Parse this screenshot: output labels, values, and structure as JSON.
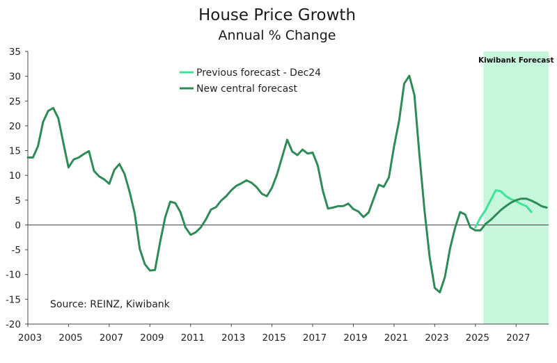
{
  "chart_data": {
    "type": "line",
    "title": "House Price Growth",
    "subtitle": "Annual % Change",
    "xlabel": "",
    "ylabel": "",
    "xlim": [
      2003,
      2028.6
    ],
    "ylim": [
      -20,
      35
    ],
    "y_ticks": [
      "35",
      "30",
      "25",
      "20",
      "15",
      "10",
      "5",
      "0",
      "-5",
      "-10",
      "-15",
      "-20"
    ],
    "x_ticks": [
      "2003",
      "2005",
      "2007",
      "2009",
      "2011",
      "2013",
      "2015",
      "2017",
      "2019",
      "2021",
      "2023",
      "2025",
      "2027"
    ],
    "grid": false,
    "legend_position": "top-center",
    "source": "Source: REINZ, Kiwibank",
    "forecast_band": {
      "label": "Kiwibank Forecast",
      "start": 2025.4,
      "end": 2028.6,
      "color": "#c6f6dc"
    },
    "series": [
      {
        "name": "Previous forecast - Dec24",
        "color": "#3ee39a",
        "points": [
          [
            2025.0,
            -0.5
          ],
          [
            2025.25,
            1.5
          ],
          [
            2025.5,
            3.0
          ],
          [
            2025.75,
            5.0
          ],
          [
            2026.0,
            7.0
          ],
          [
            2026.25,
            6.8
          ],
          [
            2026.5,
            5.8
          ],
          [
            2026.75,
            5.2
          ],
          [
            2027.0,
            4.8
          ],
          [
            2027.25,
            4.2
          ],
          [
            2027.5,
            3.8
          ],
          [
            2027.75,
            2.6
          ]
        ]
      },
      {
        "name": "New central forecast",
        "color": "#2e8b57",
        "points": [
          [
            2003.0,
            13.6
          ],
          [
            2003.25,
            13.6
          ],
          [
            2003.5,
            15.9
          ],
          [
            2003.75,
            20.8
          ],
          [
            2004.0,
            23.0
          ],
          [
            2004.25,
            23.6
          ],
          [
            2004.5,
            21.5
          ],
          [
            2004.75,
            16.5
          ],
          [
            2005.0,
            11.6
          ],
          [
            2005.25,
            13.2
          ],
          [
            2005.5,
            13.6
          ],
          [
            2005.75,
            14.3
          ],
          [
            2006.0,
            14.9
          ],
          [
            2006.25,
            10.9
          ],
          [
            2006.5,
            9.8
          ],
          [
            2006.75,
            9.2
          ],
          [
            2007.0,
            8.3
          ],
          [
            2007.25,
            11.1
          ],
          [
            2007.5,
            12.3
          ],
          [
            2007.75,
            10.3
          ],
          [
            2008.0,
            6.7
          ],
          [
            2008.25,
            2.4
          ],
          [
            2008.5,
            -4.8
          ],
          [
            2008.75,
            -7.9
          ],
          [
            2009.0,
            -9.2
          ],
          [
            2009.25,
            -9.1
          ],
          [
            2009.5,
            -3.5
          ],
          [
            2009.75,
            1.5
          ],
          [
            2010.0,
            4.7
          ],
          [
            2010.25,
            4.4
          ],
          [
            2010.5,
            2.6
          ],
          [
            2010.75,
            -0.5
          ],
          [
            2011.0,
            -2.0
          ],
          [
            2011.25,
            -1.5
          ],
          [
            2011.5,
            -0.5
          ],
          [
            2011.75,
            1.1
          ],
          [
            2012.0,
            3.1
          ],
          [
            2012.25,
            3.6
          ],
          [
            2012.5,
            4.9
          ],
          [
            2012.75,
            5.8
          ],
          [
            2013.0,
            7.0
          ],
          [
            2013.25,
            7.9
          ],
          [
            2013.5,
            8.4
          ],
          [
            2013.75,
            9.0
          ],
          [
            2014.0,
            8.5
          ],
          [
            2014.25,
            7.6
          ],
          [
            2014.5,
            6.3
          ],
          [
            2014.75,
            5.8
          ],
          [
            2015.0,
            7.5
          ],
          [
            2015.25,
            10.2
          ],
          [
            2015.5,
            13.7
          ],
          [
            2015.75,
            17.2
          ],
          [
            2016.0,
            14.8
          ],
          [
            2016.25,
            14.1
          ],
          [
            2016.5,
            15.2
          ],
          [
            2016.75,
            14.4
          ],
          [
            2017.0,
            14.6
          ],
          [
            2017.25,
            12.0
          ],
          [
            2017.5,
            6.9
          ],
          [
            2017.75,
            3.3
          ],
          [
            2018.0,
            3.5
          ],
          [
            2018.25,
            3.8
          ],
          [
            2018.5,
            3.8
          ],
          [
            2018.75,
            4.3
          ],
          [
            2019.0,
            3.2
          ],
          [
            2019.25,
            2.7
          ],
          [
            2019.5,
            1.6
          ],
          [
            2019.75,
            2.5
          ],
          [
            2020.0,
            5.3
          ],
          [
            2020.25,
            8.1
          ],
          [
            2020.5,
            7.7
          ],
          [
            2020.75,
            9.6
          ],
          [
            2021.0,
            15.8
          ],
          [
            2021.25,
            21.0
          ],
          [
            2021.5,
            28.5
          ],
          [
            2021.75,
            30.1
          ],
          [
            2022.0,
            26.2
          ],
          [
            2022.25,
            14.0
          ],
          [
            2022.5,
            2.8
          ],
          [
            2022.75,
            -6.5
          ],
          [
            2023.0,
            -12.7
          ],
          [
            2023.25,
            -13.6
          ],
          [
            2023.5,
            -10.5
          ],
          [
            2023.75,
            -4.8
          ],
          [
            2024.0,
            -0.6
          ],
          [
            2024.25,
            2.6
          ],
          [
            2024.5,
            2.1
          ],
          [
            2024.75,
            -0.5
          ],
          [
            2025.0,
            -1.1
          ],
          [
            2025.25,
            -1.1
          ],
          [
            2025.5,
            0.2
          ],
          [
            2025.75,
            1.0
          ],
          [
            2026.0,
            2.0
          ],
          [
            2026.25,
            3.0
          ],
          [
            2026.5,
            3.8
          ],
          [
            2026.75,
            4.5
          ],
          [
            2027.0,
            5.0
          ],
          [
            2027.25,
            5.3
          ],
          [
            2027.5,
            5.3
          ],
          [
            2027.75,
            4.9
          ],
          [
            2028.0,
            4.4
          ],
          [
            2028.25,
            3.8
          ],
          [
            2028.5,
            3.5
          ]
        ]
      }
    ]
  }
}
